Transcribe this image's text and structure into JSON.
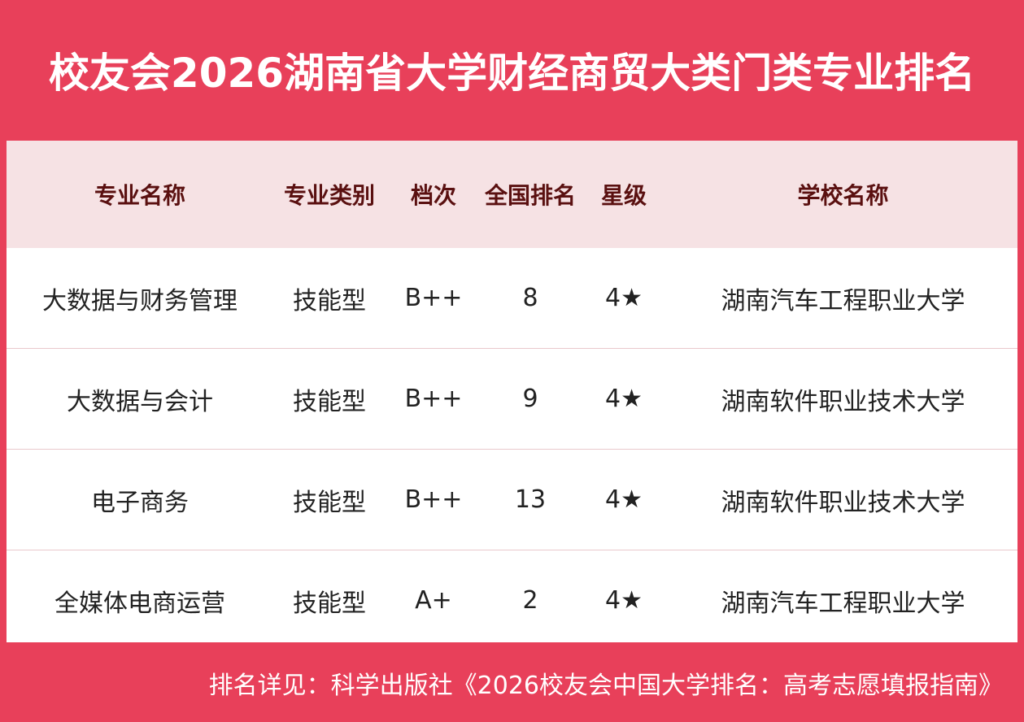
{
  "header": {
    "title": "校友会2026湖南省大学财经商贸大类门类专业排名"
  },
  "table": {
    "columns": [
      "专业名称",
      "专业类别",
      "档次",
      "全国排名",
      "星级",
      "学校名称"
    ],
    "rows": [
      [
        "大数据与财务管理",
        "技能型",
        "B++",
        "8",
        "4★",
        "湖南汽车工程职业大学"
      ],
      [
        "大数据与会计",
        "技能型",
        "B++",
        "9",
        "4★",
        "湖南软件职业技术大学"
      ],
      [
        "电子商务",
        "技能型",
        "B++",
        "13",
        "4★",
        "湖南软件职业技术大学"
      ],
      [
        "全媒体电商运营",
        "技能型",
        "A+",
        "2",
        "4★",
        "湖南汽车工程职业大学"
      ]
    ]
  },
  "footer": {
    "note": "排名详见：科学出版社《2026校友会中国大学排名：高考志愿填报指南》"
  }
}
